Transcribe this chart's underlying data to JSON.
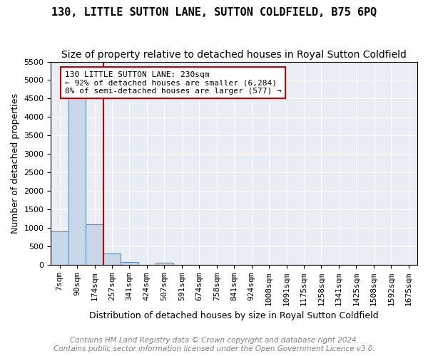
{
  "title": "130, LITTLE SUTTON LANE, SUTTON COLDFIELD, B75 6PQ",
  "subtitle": "Size of property relative to detached houses in Royal Sutton Coldfield",
  "xlabel": "Distribution of detached houses by size in Royal Sutton Coldfield",
  "ylabel": "Number of detached properties",
  "footer_line1": "Contains HM Land Registry data © Crown copyright and database right 2024.",
  "footer_line2": "Contains public sector information licensed under the Open Government Licence v3.0.",
  "annotation_text": "130 LITTLE SUTTON LANE: 230sqm\n← 92% of detached houses are smaller (6,284)\n8% of semi-detached houses are larger (577) →",
  "property_size": 230,
  "bar_color": "#c8d8e8",
  "bar_edge_color": "#5b8db8",
  "line_color": "#cc0000",
  "annotation_box_color": "#cc0000",
  "background_color": "#e8eef4",
  "ylim": [
    0,
    5500
  ],
  "yticks": [
    0,
    500,
    1000,
    1500,
    2000,
    2500,
    3000,
    3500,
    4000,
    4500,
    5000,
    5500
  ],
  "bin_labels": [
    "7sqm",
    "90sqm",
    "174sqm",
    "257sqm",
    "341sqm",
    "424sqm",
    "507sqm",
    "591sqm",
    "674sqm",
    "758sqm",
    "841sqm",
    "924sqm",
    "1008sqm",
    "1091sqm",
    "1175sqm",
    "1258sqm",
    "1341sqm",
    "1425sqm",
    "1508sqm",
    "1592sqm",
    "1675sqm"
  ],
  "bar_heights": [
    900,
    4550,
    1100,
    300,
    80,
    0,
    50,
    0,
    0,
    0,
    0,
    0,
    0,
    0,
    0,
    0,
    0,
    0,
    0,
    0,
    0
  ],
  "property_line_x": 2.5,
  "title_fontsize": 11,
  "subtitle_fontsize": 10,
  "label_fontsize": 9,
  "tick_fontsize": 8,
  "annotation_fontsize": 8,
  "footer_fontsize": 7.5
}
